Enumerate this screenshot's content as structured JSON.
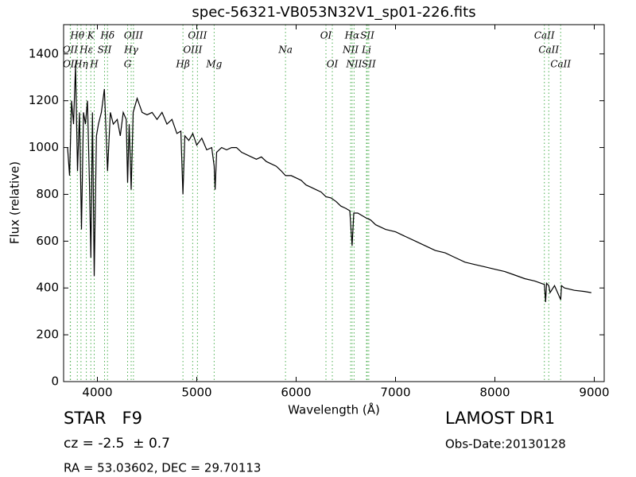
{
  "chart_data": {
    "type": "line",
    "title": "spec-56321-VB053N32V1_sp01-226.fits",
    "xlabel": "Wavelength (Å)",
    "ylabel": "Flux (relative)",
    "color": "#000000",
    "xlim": [
      3660,
      9100
    ],
    "ylim": [
      0,
      1525
    ],
    "xticks": [
      4000,
      5000,
      6000,
      7000,
      8000,
      9000
    ],
    "yticks": [
      0,
      200,
      400,
      600,
      800,
      1000,
      1200,
      1400
    ],
    "x": [
      3700,
      3720,
      3740,
      3760,
      3780,
      3800,
      3820,
      3840,
      3860,
      3880,
      3900,
      3920,
      3934,
      3950,
      3968,
      3990,
      4010,
      4040,
      4070,
      4102,
      4130,
      4160,
      4200,
      4230,
      4260,
      4290,
      4304,
      4320,
      4340,
      4360,
      4400,
      4450,
      4500,
      4550,
      4600,
      4650,
      4700,
      4750,
      4800,
      4840,
      4861,
      4880,
      4920,
      4960,
      5000,
      5050,
      5100,
      5150,
      5175,
      5185,
      5200,
      5250,
      5300,
      5350,
      5400,
      5450,
      5500,
      5550,
      5600,
      5650,
      5700,
      5750,
      5800,
      5850,
      5893,
      5950,
      6000,
      6050,
      6100,
      6150,
      6200,
      6250,
      6300,
      6350,
      6400,
      6450,
      6500,
      6540,
      6563,
      6580,
      6620,
      6700,
      6750,
      6800,
      6900,
      7000,
      7100,
      7200,
      7300,
      7400,
      7500,
      7600,
      7700,
      7800,
      7900,
      8000,
      8100,
      8200,
      8300,
      8400,
      8498,
      8510,
      8520,
      8542,
      8555,
      8600,
      8662,
      8670,
      8700,
      8800,
      8900,
      8970
    ],
    "values": [
      1000,
      880,
      1200,
      1100,
      1350,
      900,
      1150,
      650,
      1150,
      1100,
      1200,
      850,
      530,
      1150,
      450,
      1050,
      1100,
      1150,
      1250,
      900,
      1150,
      1100,
      1120,
      1050,
      1150,
      1120,
      850,
      1100,
      820,
      1150,
      1210,
      1150,
      1140,
      1150,
      1120,
      1150,
      1100,
      1120,
      1060,
      1070,
      800,
      1050,
      1030,
      1060,
      1010,
      1040,
      990,
      1000,
      920,
      820,
      980,
      1000,
      990,
      1000,
      1000,
      980,
      970,
      960,
      950,
      960,
      940,
      930,
      920,
      900,
      880,
      880,
      870,
      860,
      840,
      830,
      820,
      810,
      790,
      785,
      770,
      750,
      740,
      730,
      580,
      720,
      720,
      700,
      690,
      670,
      650,
      640,
      620,
      600,
      580,
      560,
      550,
      530,
      510,
      500,
      490,
      480,
      470,
      455,
      440,
      430,
      415,
      340,
      420,
      410,
      380,
      410,
      350,
      410,
      400,
      390,
      385,
      380
    ],
    "line_label_rows": [
      [
        {
          "label": "Hθ",
          "wavelength": 3798
        },
        {
          "label": "K",
          "wavelength": 3934
        },
        {
          "label": "Hδ",
          "wavelength": 4102
        },
        {
          "label": "OIII",
          "wavelength": 4363
        },
        {
          "label": "OIII",
          "wavelength": 5007
        },
        {
          "label": "OI",
          "wavelength": 6300
        },
        {
          "label": "Hα",
          "wavelength": 6563
        },
        {
          "label": "SII",
          "wavelength": 6716
        },
        {
          "label": "CaII",
          "wavelength": 8498
        }
      ],
      [
        {
          "label": "OII",
          "wavelength": 3727
        },
        {
          "label": "Hε",
          "wavelength": 3889
        },
        {
          "label": "SII",
          "wavelength": 4072
        },
        {
          "label": "Hγ",
          "wavelength": 4340
        },
        {
          "label": "OIII",
          "wavelength": 4959
        },
        {
          "label": "Na",
          "wavelength": 5893
        },
        {
          "label": "NII",
          "wavelength": 6548
        },
        {
          "label": "Li",
          "wavelength": 6708
        },
        {
          "label": "CaII",
          "wavelength": 8542
        }
      ],
      [
        {
          "label": "OII",
          "wavelength": 3729
        },
        {
          "label": "Hη",
          "wavelength": 3835
        },
        {
          "label": "H",
          "wavelength": 3968
        },
        {
          "label": "G",
          "wavelength": 4304
        },
        {
          "label": "Hβ",
          "wavelength": 4861
        },
        {
          "label": "Mg",
          "wavelength": 5175
        },
        {
          "label": "OI",
          "wavelength": 6364
        },
        {
          "label": "NII",
          "wavelength": 6583
        },
        {
          "label": "SII",
          "wavelength": 6731
        },
        {
          "label": "CaII",
          "wavelength": 8662
        }
      ]
    ]
  },
  "info": {
    "object": "STAR   F9",
    "redshift": "cz = -2.5  ± 0.7",
    "coords": "RA = 53.03602, DEC = 29.70113",
    "survey": "LAMOST DR1",
    "obs_date": "Obs-Date:20130128"
  }
}
